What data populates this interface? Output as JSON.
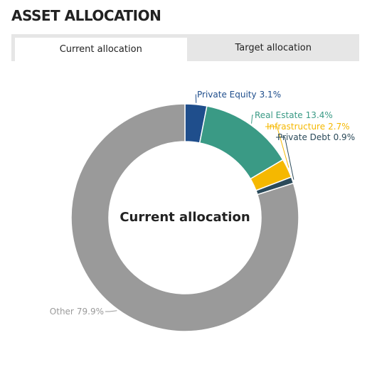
{
  "header": {
    "title": "ASSET ALLOCATION"
  },
  "tabs": [
    "Current allocation",
    "Target allocation"
  ],
  "chart_data": {
    "type": "donut",
    "title": "Current allocation",
    "categories": [
      "Private Equity",
      "Real Estate",
      "Infrastructure",
      "Private Debt",
      "Other"
    ],
    "values": [
      3.1,
      13.4,
      2.7,
      0.9,
      79.9
    ],
    "value_labels": [
      "3.1%",
      "13.4%",
      "2.7%",
      "0.9%",
      "79.9%"
    ],
    "colors": [
      "#1f4e8c",
      "#3a9a85",
      "#f5b800",
      "#2b4a5a",
      "#9a9a9a"
    ]
  }
}
